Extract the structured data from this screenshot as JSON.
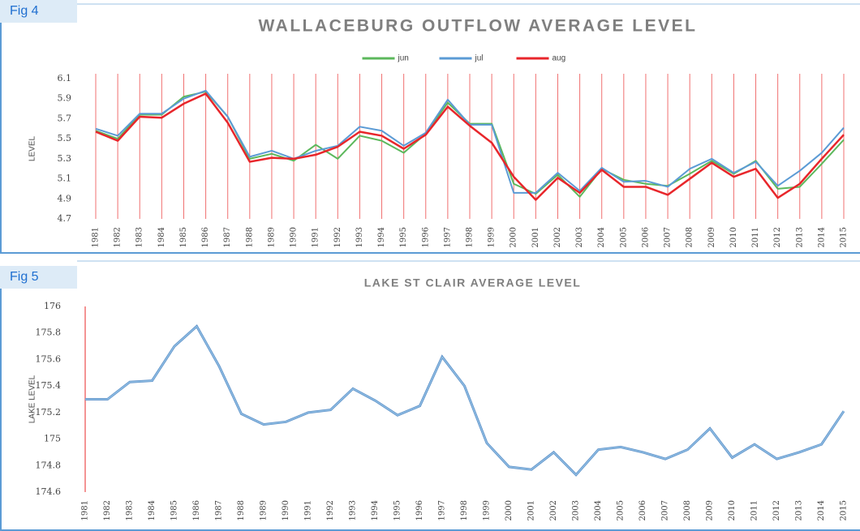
{
  "chart_data": [
    {
      "type": "line",
      "figure_label": "Fig 4",
      "title": "WALLACEBURG OUTFLOW AVERAGE LEVEL",
      "y_label": "LEVEL",
      "categories": [
        "1981",
        "1982",
        "1983",
        "1984",
        "1985",
        "1986",
        "1987",
        "1988",
        "1989",
        "1990",
        "1991",
        "1992",
        "1993",
        "1994",
        "1995",
        "1996",
        "1997",
        "1998",
        "1999",
        "2000",
        "2001",
        "2002",
        "2003",
        "2004",
        "2005",
        "2006",
        "2007",
        "2008",
        "2009",
        "2010",
        "2011",
        "2012",
        "2013",
        "2014",
        "2015"
      ],
      "series": [
        {
          "name": "jun",
          "color": "#5cb85c",
          "values": [
            5.58,
            5.5,
            5.74,
            5.74,
            5.92,
            5.97,
            5.72,
            5.3,
            5.35,
            5.28,
            5.44,
            5.3,
            5.53,
            5.48,
            5.36,
            5.55,
            5.86,
            5.65,
            5.65,
            5.05,
            4.95,
            5.14,
            4.92,
            5.2,
            5.09,
            5.05,
            5.03,
            5.15,
            5.28,
            5.15,
            5.28,
            5.0,
            5.02,
            5.25,
            5.49
          ]
        },
        {
          "name": "jul",
          "color": "#5b9bd5",
          "values": [
            5.6,
            5.53,
            5.75,
            5.75,
            5.9,
            5.98,
            5.72,
            5.32,
            5.38,
            5.3,
            5.38,
            5.43,
            5.62,
            5.58,
            5.43,
            5.56,
            5.89,
            5.64,
            5.64,
            4.96,
            4.96,
            5.16,
            4.98,
            5.21,
            5.07,
            5.08,
            5.02,
            5.2,
            5.3,
            5.16,
            5.27,
            5.03,
            5.18,
            5.36,
            5.61
          ]
        },
        {
          "name": "aug",
          "color": "#e8262b",
          "values": [
            5.57,
            5.48,
            5.72,
            5.71,
            5.85,
            5.95,
            5.66,
            5.27,
            5.31,
            5.3,
            5.34,
            5.42,
            5.57,
            5.53,
            5.4,
            5.54,
            5.82,
            5.63,
            5.46,
            5.12,
            4.89,
            5.11,
            4.96,
            5.19,
            5.02,
            5.02,
            4.94,
            5.1,
            5.26,
            5.12,
            5.2,
            4.91,
            5.05,
            5.3,
            5.54
          ]
        }
      ],
      "ylim": [
        4.7,
        6.1
      ],
      "yticks": [
        4.7,
        4.9,
        5.1,
        5.3,
        5.5,
        5.7,
        5.9,
        6.1
      ],
      "vertical_grid": true,
      "grid_color": "#f07070",
      "legend": "top"
    },
    {
      "type": "line",
      "figure_label": "Fig 5",
      "title": "LAKE ST CLAIR AVERAGE LEVEL",
      "y_label": "LAKE LEVEL",
      "categories": [
        "1981",
        "1982",
        "1983",
        "1984",
        "1985",
        "1986",
        "1987",
        "1988",
        "1989",
        "1990",
        "1991",
        "1992",
        "1993",
        "1994",
        "1995",
        "1996",
        "1997",
        "1998",
        "1999",
        "2000",
        "2001",
        "2002",
        "2003",
        "2004",
        "2005",
        "2006",
        "2007",
        "2008",
        "2009",
        "2010",
        "2011",
        "2012",
        "2013",
        "2014",
        "2015"
      ],
      "values": [
        175.3,
        175.3,
        175.43,
        175.44,
        175.7,
        175.85,
        175.55,
        175.19,
        175.11,
        175.13,
        175.2,
        175.22,
        175.38,
        175.29,
        175.18,
        175.25,
        175.62,
        175.4,
        174.97,
        174.79,
        174.77,
        174.9,
        174.73,
        174.92,
        174.94,
        174.9,
        174.85,
        174.92,
        175.08,
        174.86,
        174.96,
        174.85,
        174.9,
        174.96,
        175.21
      ],
      "color": "#8fbde3",
      "ylim": [
        174.6,
        176
      ],
      "yticks": [
        174.6,
        174.8,
        175,
        175.2,
        175.4,
        175.6,
        175.8,
        176
      ],
      "vertical_grid": false,
      "axis_color": "#f07070"
    }
  ]
}
